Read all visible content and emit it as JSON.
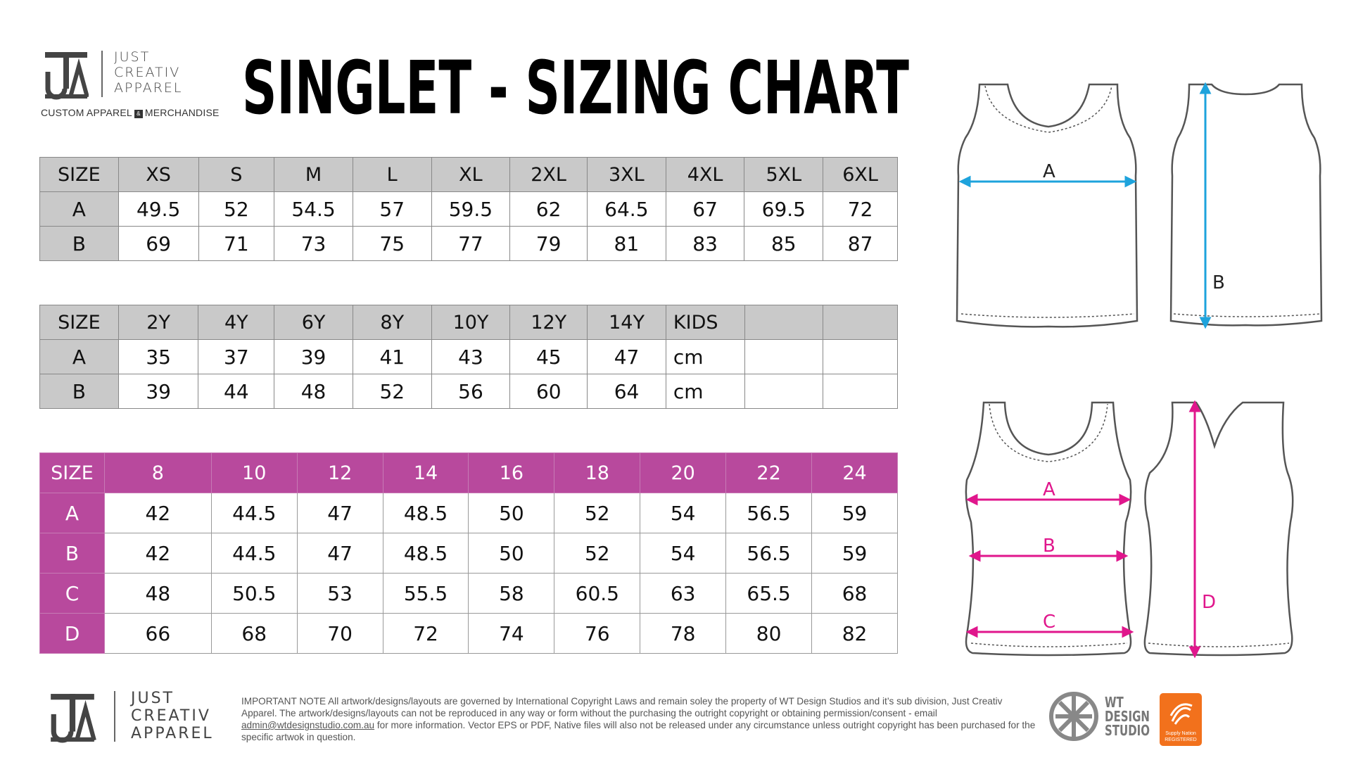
{
  "header": {
    "brand_lines": [
      "JUST",
      "CREATIV",
      "APPAREL"
    ],
    "tagline_left": "CUSTOM APPAREL",
    "tagline_amp": "&",
    "tagline_right": "MERCHANDISE",
    "title": "SINGLET - SIZING CHART"
  },
  "adult_table": {
    "header": [
      "SIZE",
      "XS",
      "S",
      "M",
      "L",
      "XL",
      "2XL",
      "3XL",
      "4XL",
      "5XL",
      "6XL"
    ],
    "rows": [
      [
        "A",
        "49.5",
        "52",
        "54.5",
        "57",
        "59.5",
        "62",
        "64.5",
        "67",
        "69.5",
        "72"
      ],
      [
        "B",
        "69",
        "71",
        "73",
        "75",
        "77",
        "79",
        "81",
        "83",
        "85",
        "87"
      ]
    ]
  },
  "kids_table": {
    "header": [
      "SIZE",
      "2Y",
      "4Y",
      "6Y",
      "8Y",
      "10Y",
      "12Y",
      "14Y",
      "KIDS",
      "",
      ""
    ],
    "rows": [
      [
        "A",
        "35",
        "37",
        "39",
        "41",
        "43",
        "45",
        "47",
        "cm",
        "",
        ""
      ],
      [
        "B",
        "39",
        "44",
        "48",
        "52",
        "56",
        "60",
        "64",
        "cm",
        "",
        ""
      ]
    ]
  },
  "ladies_table": {
    "header": [
      "SIZE",
      "8",
      "10",
      "12",
      "14",
      "16",
      "18",
      "20",
      "22",
      "24"
    ],
    "rows": [
      [
        "A",
        "42",
        "44.5",
        "47",
        "48.5",
        "50",
        "52",
        "54",
        "56.5",
        "59"
      ],
      [
        "B",
        "42",
        "44.5",
        "47",
        "48.5",
        "50",
        "52",
        "54",
        "56.5",
        "59"
      ],
      [
        "C",
        "48",
        "50.5",
        "53",
        "55.5",
        "58",
        "60.5",
        "63",
        "65.5",
        "68"
      ],
      [
        "D",
        "66",
        "68",
        "70",
        "72",
        "74",
        "76",
        "78",
        "80",
        "82"
      ]
    ]
  },
  "diagrams": {
    "top_front_label": "A",
    "top_back_label": "B",
    "bottom_front_labels": [
      "A",
      "B",
      "C"
    ],
    "bottom_back_label": "D",
    "blue": "#1ea3dc",
    "pink": "#e0168c"
  },
  "footer": {
    "brand_lines": [
      "JUST",
      "CREATIV",
      "APPAREL"
    ],
    "note_1": "IMPORTANT NOTE All artwork/designs/layouts are governed by International Copyright Laws and remain soley the property of WT Design Studios and it’s sub division, Just Creativ Apparel. The artwork/designs/layouts can not be reproduced in any way or form without the purchasing the outright copyright or obtaining permission/consent - email ",
    "note_email": "admin@wtdesignstudio.com.au",
    "note_2": " for more information. Vector EPS or PDF, Native files will also not be released under any circumstance unless outright copyright has been purchased for the specific artwok in question.",
    "wt_lines": [
      "WT",
      "DESIGN",
      "STUDIO"
    ],
    "sn_lines": [
      "Supply Nation",
      "REGISTERED"
    ]
  }
}
